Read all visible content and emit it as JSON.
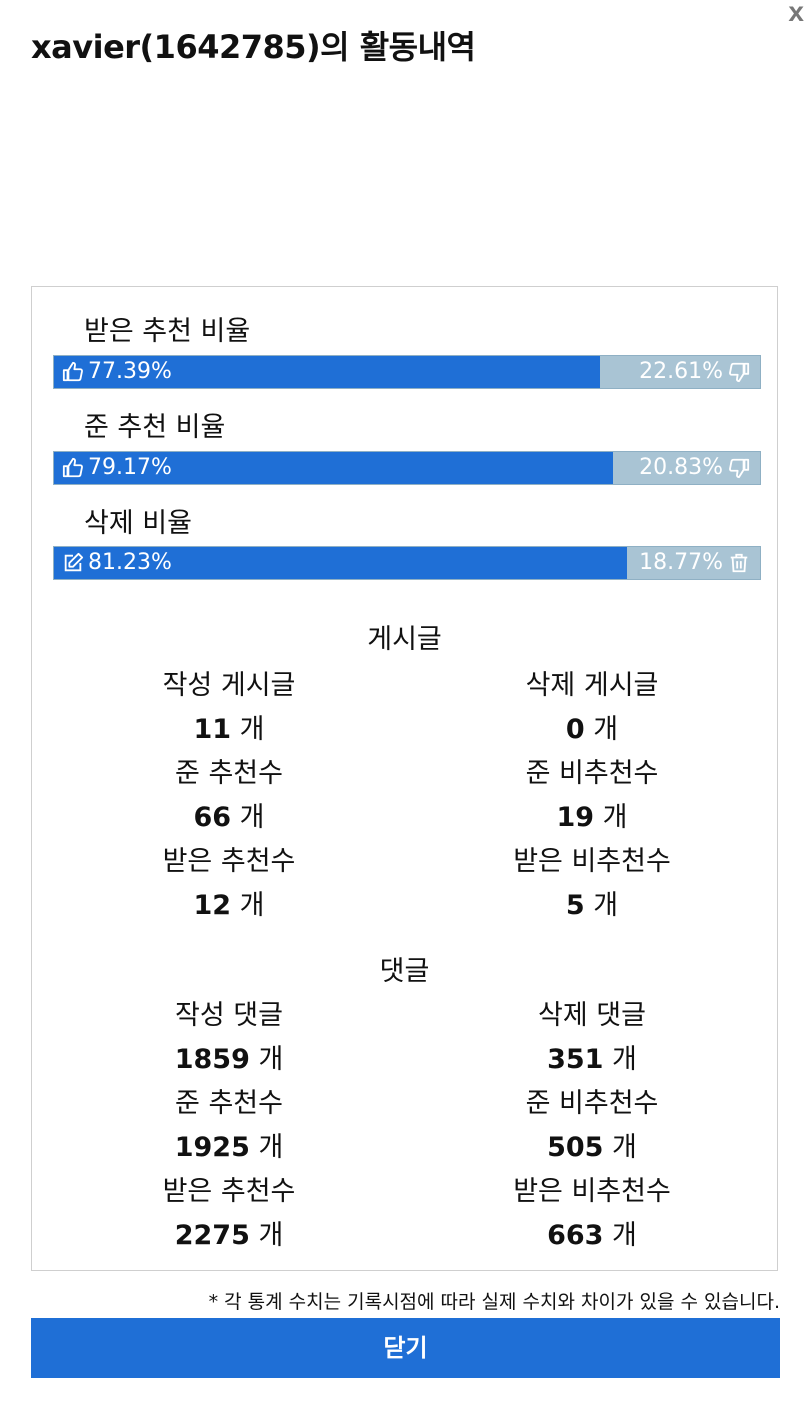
{
  "title": "xavier(1642785)의 활동내역",
  "close_x": "x",
  "ratios": [
    {
      "label": "받은 추천 비율",
      "left_value": "77.39%",
      "right_value": "22.61%",
      "fill_percent": 77.39,
      "left_icon": "thumbs-up-icon",
      "right_icon": "thumbs-down-icon"
    },
    {
      "label": "준 추천 비율",
      "left_value": "79.17%",
      "right_value": "20.83%",
      "fill_percent": 79.17,
      "left_icon": "thumbs-up-icon",
      "right_icon": "thumbs-down-icon"
    },
    {
      "label": "삭제 비율",
      "left_value": "81.23%",
      "right_value": "18.77%",
      "fill_percent": 81.23,
      "left_icon": "edit-icon",
      "right_icon": "trash-icon"
    }
  ],
  "posts": {
    "title": "게시글",
    "written_label": "작성 게시글",
    "written_value": "11",
    "written_unit": " 개",
    "deleted_label": "삭제 게시글",
    "deleted_value": "0",
    "deleted_unit": " 개",
    "given_up_label": "준 추천수",
    "given_up_value": "66",
    "given_up_unit": " 개",
    "given_down_label": "준 비추천수",
    "given_down_value": "19",
    "given_down_unit": " 개",
    "recv_up_label": "받은 추천수",
    "recv_up_value": "12",
    "recv_up_unit": " 개",
    "recv_down_label": "받은 비추천수",
    "recv_down_value": "5",
    "recv_down_unit": " 개"
  },
  "comments": {
    "title": "댓글",
    "written_label": "작성 댓글",
    "written_value": "1859",
    "written_unit": " 개",
    "deleted_label": "삭제 댓글",
    "deleted_value": "351",
    "deleted_unit": " 개",
    "given_up_label": "준 추천수",
    "given_up_value": "1925",
    "given_up_unit": " 개",
    "given_down_label": "준 비추천수",
    "given_down_value": "505",
    "given_down_unit": " 개",
    "recv_up_label": "받은 추천수",
    "recv_up_value": "2275",
    "recv_up_unit": " 개",
    "recv_down_label": "받은 비추천수",
    "recv_down_value": "663",
    "recv_down_unit": " 개"
  },
  "footnote": "* 각 통계 수치는 기록시점에 따라 실제 수치와 차이가 있을 수 있습니다.",
  "close_button": "닫기",
  "colors": {
    "accent": "#1f6fd6",
    "bar_rest": "#a9c4d4"
  }
}
